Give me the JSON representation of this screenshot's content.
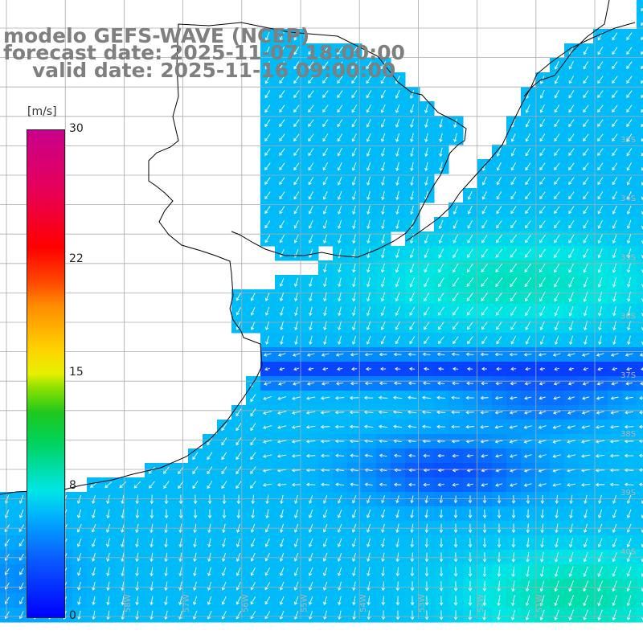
{
  "title": {
    "line1": "modelo GEFS-WAVE (NCEP)",
    "line2": "forecast date: 2025-11-07 18:00:00",
    "line3": "valid date: 2025-11-16 09:00:00"
  },
  "colorbar": {
    "unit": "[m/s]",
    "ticks": [
      {
        "value": 0,
        "label": "0"
      },
      {
        "value": 8,
        "label": "8"
      },
      {
        "value": 15,
        "label": "15"
      },
      {
        "value": 22,
        "label": "22"
      },
      {
        "value": 30,
        "label": "30"
      }
    ],
    "range": [
      0,
      30
    ]
  },
  "map": {
    "lat_labels": [
      "33S",
      "34S",
      "35S",
      "36S",
      "37S",
      "38S",
      "39S",
      "40S"
    ],
    "lon_labels": [
      "58W",
      "57W",
      "56W",
      "55W",
      "54W",
      "53W",
      "52W",
      "51W"
    ],
    "colors": {
      "land": "#ffffff",
      "coast": "#000000",
      "grid": "#aaaaaa",
      "arrow": "#ffffff"
    }
  }
}
